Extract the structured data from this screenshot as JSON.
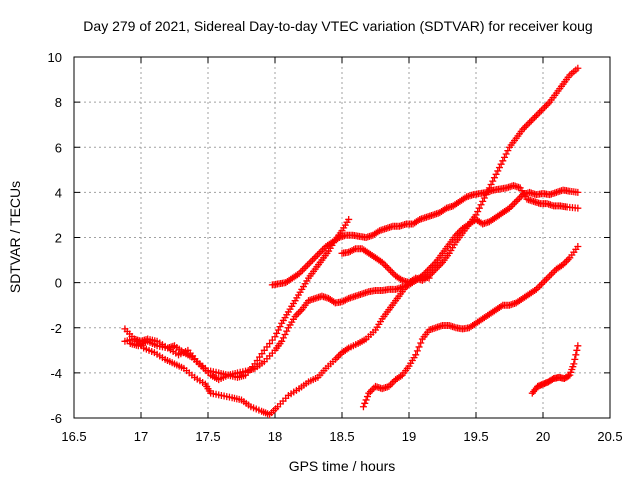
{
  "chart_data": {
    "type": "scatter",
    "title": "Day 279 of 2021, Sidereal Day-to-day VTEC variation (SDTVAR) for receiver koug",
    "xlabel": "GPS time / hours",
    "ylabel": "SDTVAR / TECUs",
    "xlim": [
      16.5,
      20.5
    ],
    "ylim": [
      -6,
      10
    ],
    "xticks": [
      "16.5",
      "17",
      "17.5",
      "18",
      "18.5",
      "19",
      "19.5",
      "20",
      "20.5"
    ],
    "yticks": [
      "-6",
      "-4",
      "-2",
      "0",
      "2",
      "4",
      "6",
      "8",
      "10"
    ],
    "grid": true,
    "marker": "+",
    "color": "#ff0000",
    "series": [
      {
        "name": "trace-1",
        "points": [
          [
            16.88,
            -2.6
          ],
          [
            16.95,
            -2.5
          ],
          [
            17.0,
            -2.6
          ],
          [
            17.05,
            -2.5
          ],
          [
            17.12,
            -2.6
          ],
          [
            17.2,
            -2.9
          ],
          [
            17.25,
            -2.8
          ],
          [
            17.32,
            -3.1
          ],
          [
            17.38,
            -3.3
          ],
          [
            17.45,
            -3.7
          ],
          [
            17.52,
            -4.1
          ],
          [
            17.58,
            -4.3
          ],
          [
            17.65,
            -4.1
          ],
          [
            17.72,
            -4.0
          ],
          [
            17.8,
            -3.9
          ],
          [
            17.85,
            -3.8
          ],
          [
            17.92,
            -3.5
          ],
          [
            18.0,
            -3.0
          ],
          [
            18.05,
            -2.6
          ],
          [
            18.1,
            -2.0
          ],
          [
            18.15,
            -1.5
          ],
          [
            18.2,
            -1.2
          ],
          [
            18.25,
            -0.8
          ],
          [
            18.3,
            -0.7
          ],
          [
            18.35,
            -0.6
          ],
          [
            18.4,
            -0.7
          ],
          [
            18.45,
            -0.9
          ],
          [
            18.5,
            -0.85
          ],
          [
            18.55,
            -0.7
          ],
          [
            18.6,
            -0.6
          ],
          [
            18.65,
            -0.5
          ],
          [
            18.7,
            -0.4
          ],
          [
            18.75,
            -0.35
          ],
          [
            18.8,
            -0.35
          ],
          [
            18.85,
            -0.3
          ],
          [
            18.9,
            -0.3
          ],
          [
            18.95,
            -0.2
          ],
          [
            19.0,
            -0.1
          ],
          [
            19.05,
            0.1
          ],
          [
            19.1,
            0.3
          ],
          [
            19.15,
            0.6
          ],
          [
            19.2,
            0.9
          ],
          [
            19.25,
            1.3
          ],
          [
            19.3,
            1.7
          ],
          [
            19.35,
            2.1
          ],
          [
            19.4,
            2.4
          ],
          [
            19.45,
            2.6
          ],
          [
            19.5,
            2.8
          ],
          [
            19.55,
            2.6
          ],
          [
            19.6,
            2.7
          ],
          [
            19.65,
            2.9
          ],
          [
            19.7,
            3.1
          ],
          [
            19.75,
            3.3
          ],
          [
            19.8,
            3.6
          ],
          [
            19.85,
            3.9
          ],
          [
            19.9,
            4.0
          ],
          [
            19.95,
            3.9
          ],
          [
            20.0,
            3.95
          ],
          [
            20.05,
            3.9
          ],
          [
            20.1,
            4.0
          ],
          [
            20.15,
            4.1
          ],
          [
            20.2,
            4.05
          ],
          [
            20.26,
            4.0
          ]
        ]
      },
      {
        "name": "trace-2",
        "points": [
          [
            16.88,
            -2.05
          ],
          [
            16.95,
            -2.5
          ],
          [
            17.02,
            -2.9
          ],
          [
            17.1,
            -3.1
          ],
          [
            17.18,
            -3.4
          ],
          [
            17.25,
            -3.6
          ],
          [
            17.32,
            -3.8
          ],
          [
            17.4,
            -4.2
          ],
          [
            17.48,
            -4.5
          ],
          [
            17.52,
            -4.9
          ],
          [
            17.6,
            -5.0
          ],
          [
            17.68,
            -5.1
          ],
          [
            17.75,
            -5.2
          ],
          [
            17.82,
            -5.5
          ],
          [
            17.9,
            -5.7
          ],
          [
            17.96,
            -5.85
          ],
          [
            18.02,
            -5.5
          ],
          [
            18.1,
            -5.0
          ],
          [
            18.18,
            -4.7
          ],
          [
            18.25,
            -4.4
          ],
          [
            18.32,
            -4.2
          ],
          [
            18.38,
            -3.8
          ],
          [
            18.45,
            -3.4
          ],
          [
            18.5,
            -3.1
          ],
          [
            18.55,
            -2.9
          ],
          [
            18.62,
            -2.7
          ],
          [
            18.68,
            -2.5
          ],
          [
            18.75,
            -2.1
          ],
          [
            18.8,
            -1.6
          ],
          [
            18.85,
            -1.2
          ],
          [
            18.9,
            -0.8
          ],
          [
            18.95,
            -0.4
          ],
          [
            19.0,
            0.0
          ],
          [
            19.05,
            0.2
          ],
          [
            19.1,
            0.1
          ],
          [
            19.15,
            0.3
          ],
          [
            19.2,
            0.6
          ],
          [
            19.25,
            0.9
          ],
          [
            19.3,
            1.3
          ],
          [
            19.35,
            1.8
          ],
          [
            19.4,
            2.2
          ],
          [
            19.45,
            2.6
          ],
          [
            19.5,
            3.0
          ],
          [
            19.55,
            3.6
          ],
          [
            19.6,
            4.2
          ],
          [
            19.65,
            4.8
          ],
          [
            19.7,
            5.4
          ],
          [
            19.75,
            6.0
          ],
          [
            19.8,
            6.4
          ],
          [
            19.85,
            6.8
          ],
          [
            19.9,
            7.1
          ],
          [
            19.95,
            7.4
          ],
          [
            20.0,
            7.7
          ],
          [
            20.05,
            8.0
          ],
          [
            20.1,
            8.4
          ],
          [
            20.15,
            8.8
          ],
          [
            20.2,
            9.2
          ],
          [
            20.26,
            9.5
          ]
        ]
      },
      {
        "name": "trace-3",
        "points": [
          [
            16.92,
            -2.7
          ],
          [
            16.98,
            -2.8
          ],
          [
            17.05,
            -2.6
          ],
          [
            17.12,
            -2.8
          ],
          [
            17.2,
            -2.9
          ],
          [
            17.28,
            -3.2
          ],
          [
            17.35,
            -3.0
          ],
          [
            17.42,
            -3.5
          ],
          [
            17.5,
            -3.9
          ],
          [
            17.58,
            -4.0
          ],
          [
            17.65,
            -4.1
          ],
          [
            17.72,
            -4.2
          ],
          [
            17.78,
            -4.1
          ],
          [
            17.85,
            -3.6
          ],
          [
            17.92,
            -3.0
          ],
          [
            18.0,
            -2.4
          ],
          [
            18.05,
            -1.8
          ],
          [
            18.1,
            -1.3
          ],
          [
            18.15,
            -0.8
          ],
          [
            18.2,
            -0.3
          ],
          [
            18.25,
            0.2
          ],
          [
            18.3,
            0.6
          ],
          [
            18.35,
            1.0
          ],
          [
            18.4,
            1.4
          ],
          [
            18.45,
            1.9
          ],
          [
            18.5,
            2.3
          ],
          [
            18.55,
            2.8
          ]
        ]
      },
      {
        "name": "trace-4",
        "points": [
          [
            17.98,
            -0.1
          ],
          [
            18.03,
            -0.05
          ],
          [
            18.08,
            0.0
          ],
          [
            18.13,
            0.2
          ],
          [
            18.18,
            0.4
          ],
          [
            18.23,
            0.7
          ],
          [
            18.28,
            1.0
          ],
          [
            18.33,
            1.3
          ],
          [
            18.38,
            1.6
          ],
          [
            18.43,
            1.8
          ],
          [
            18.48,
            2.0
          ],
          [
            18.53,
            2.1
          ],
          [
            18.58,
            2.1
          ],
          [
            18.63,
            2.05
          ],
          [
            18.68,
            2.0
          ],
          [
            18.73,
            2.1
          ],
          [
            18.78,
            2.3
          ],
          [
            18.83,
            2.4
          ],
          [
            18.88,
            2.5
          ],
          [
            18.93,
            2.5
          ],
          [
            18.98,
            2.6
          ],
          [
            19.03,
            2.6
          ],
          [
            19.08,
            2.8
          ],
          [
            19.13,
            2.9
          ],
          [
            19.18,
            3.0
          ],
          [
            19.23,
            3.1
          ],
          [
            19.28,
            3.3
          ],
          [
            19.33,
            3.4
          ],
          [
            19.38,
            3.6
          ],
          [
            19.43,
            3.8
          ],
          [
            19.48,
            3.9
          ],
          [
            19.53,
            3.95
          ],
          [
            19.58,
            4.0
          ],
          [
            19.63,
            4.1
          ],
          [
            19.68,
            4.15
          ],
          [
            19.73,
            4.2
          ],
          [
            19.78,
            4.3
          ],
          [
            19.83,
            4.2
          ],
          [
            19.88,
            3.7
          ],
          [
            19.93,
            3.6
          ],
          [
            19.98,
            3.5
          ],
          [
            20.03,
            3.5
          ],
          [
            20.08,
            3.4
          ],
          [
            20.13,
            3.4
          ],
          [
            20.18,
            3.35
          ],
          [
            20.26,
            3.3
          ]
        ]
      },
      {
        "name": "trace-5",
        "points": [
          [
            18.5,
            1.3
          ],
          [
            18.55,
            1.35
          ],
          [
            18.6,
            1.5
          ],
          [
            18.65,
            1.5
          ],
          [
            18.7,
            1.3
          ],
          [
            18.75,
            1.1
          ],
          [
            18.8,
            0.9
          ],
          [
            18.85,
            0.6
          ],
          [
            18.9,
            0.3
          ],
          [
            18.95,
            0.1
          ],
          [
            19.0,
            0.0
          ],
          [
            19.05,
            0.1
          ],
          [
            19.1,
            0.3
          ],
          [
            19.15,
            0.2
          ]
        ]
      },
      {
        "name": "trace-6",
        "points": [
          [
            18.66,
            -5.5
          ],
          [
            18.7,
            -4.9
          ],
          [
            18.75,
            -4.6
          ],
          [
            18.8,
            -4.7
          ],
          [
            18.85,
            -4.6
          ],
          [
            18.9,
            -4.3
          ],
          [
            18.95,
            -4.1
          ],
          [
            19.0,
            -3.7
          ],
          [
            19.05,
            -3.2
          ],
          [
            19.1,
            -2.5
          ],
          [
            19.15,
            -2.1
          ],
          [
            19.2,
            -2.0
          ],
          [
            19.25,
            -1.9
          ],
          [
            19.3,
            -1.9
          ],
          [
            19.35,
            -2.0
          ],
          [
            19.4,
            -2.05
          ],
          [
            19.45,
            -2.0
          ],
          [
            19.5,
            -1.8
          ],
          [
            19.55,
            -1.6
          ],
          [
            19.6,
            -1.4
          ],
          [
            19.65,
            -1.2
          ],
          [
            19.7,
            -1.0
          ],
          [
            19.75,
            -1.0
          ],
          [
            19.8,
            -0.9
          ],
          [
            19.85,
            -0.7
          ],
          [
            19.9,
            -0.5
          ],
          [
            19.95,
            -0.3
          ],
          [
            20.0,
            0.0
          ],
          [
            20.05,
            0.3
          ],
          [
            20.1,
            0.6
          ],
          [
            20.15,
            0.8
          ],
          [
            20.2,
            1.1
          ],
          [
            20.26,
            1.6
          ]
        ]
      },
      {
        "name": "trace-7",
        "points": [
          [
            19.92,
            -4.9
          ],
          [
            19.96,
            -4.6
          ],
          [
            20.0,
            -4.5
          ],
          [
            20.04,
            -4.4
          ],
          [
            20.08,
            -4.25
          ],
          [
            20.12,
            -4.2
          ],
          [
            20.16,
            -4.25
          ],
          [
            20.2,
            -4.1
          ],
          [
            20.23,
            -3.6
          ],
          [
            20.26,
            -2.8
          ]
        ]
      }
    ]
  }
}
